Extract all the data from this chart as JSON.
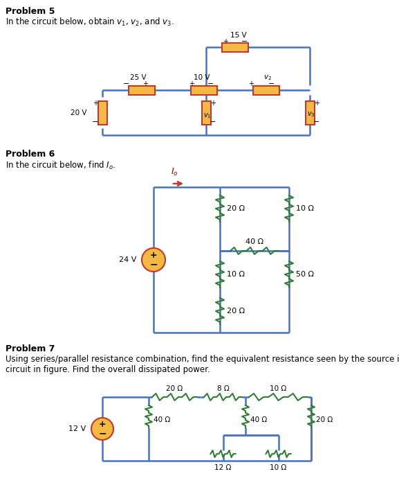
{
  "bg_color": "#ffffff",
  "wire_color": "#4472c4",
  "resistor_fill": "#f4b942",
  "resistor_edge": "#c0392b",
  "resistor_wire_color": "#2e7d32",
  "prob5_title": "Problem 5",
  "prob5_desc": "In the circuit below, obtain $v_1$, $v_2$, and $v_3$.",
  "prob6_title": "Problem 6",
  "prob6_desc": "In the circuit below, find $I_o$.",
  "prob7_title": "Problem 7",
  "prob7_desc": "Using series/parallel resistance combination, find the equivalent resistance seen by the source in the\ncircuit in figure. Find the overall dissipated power."
}
